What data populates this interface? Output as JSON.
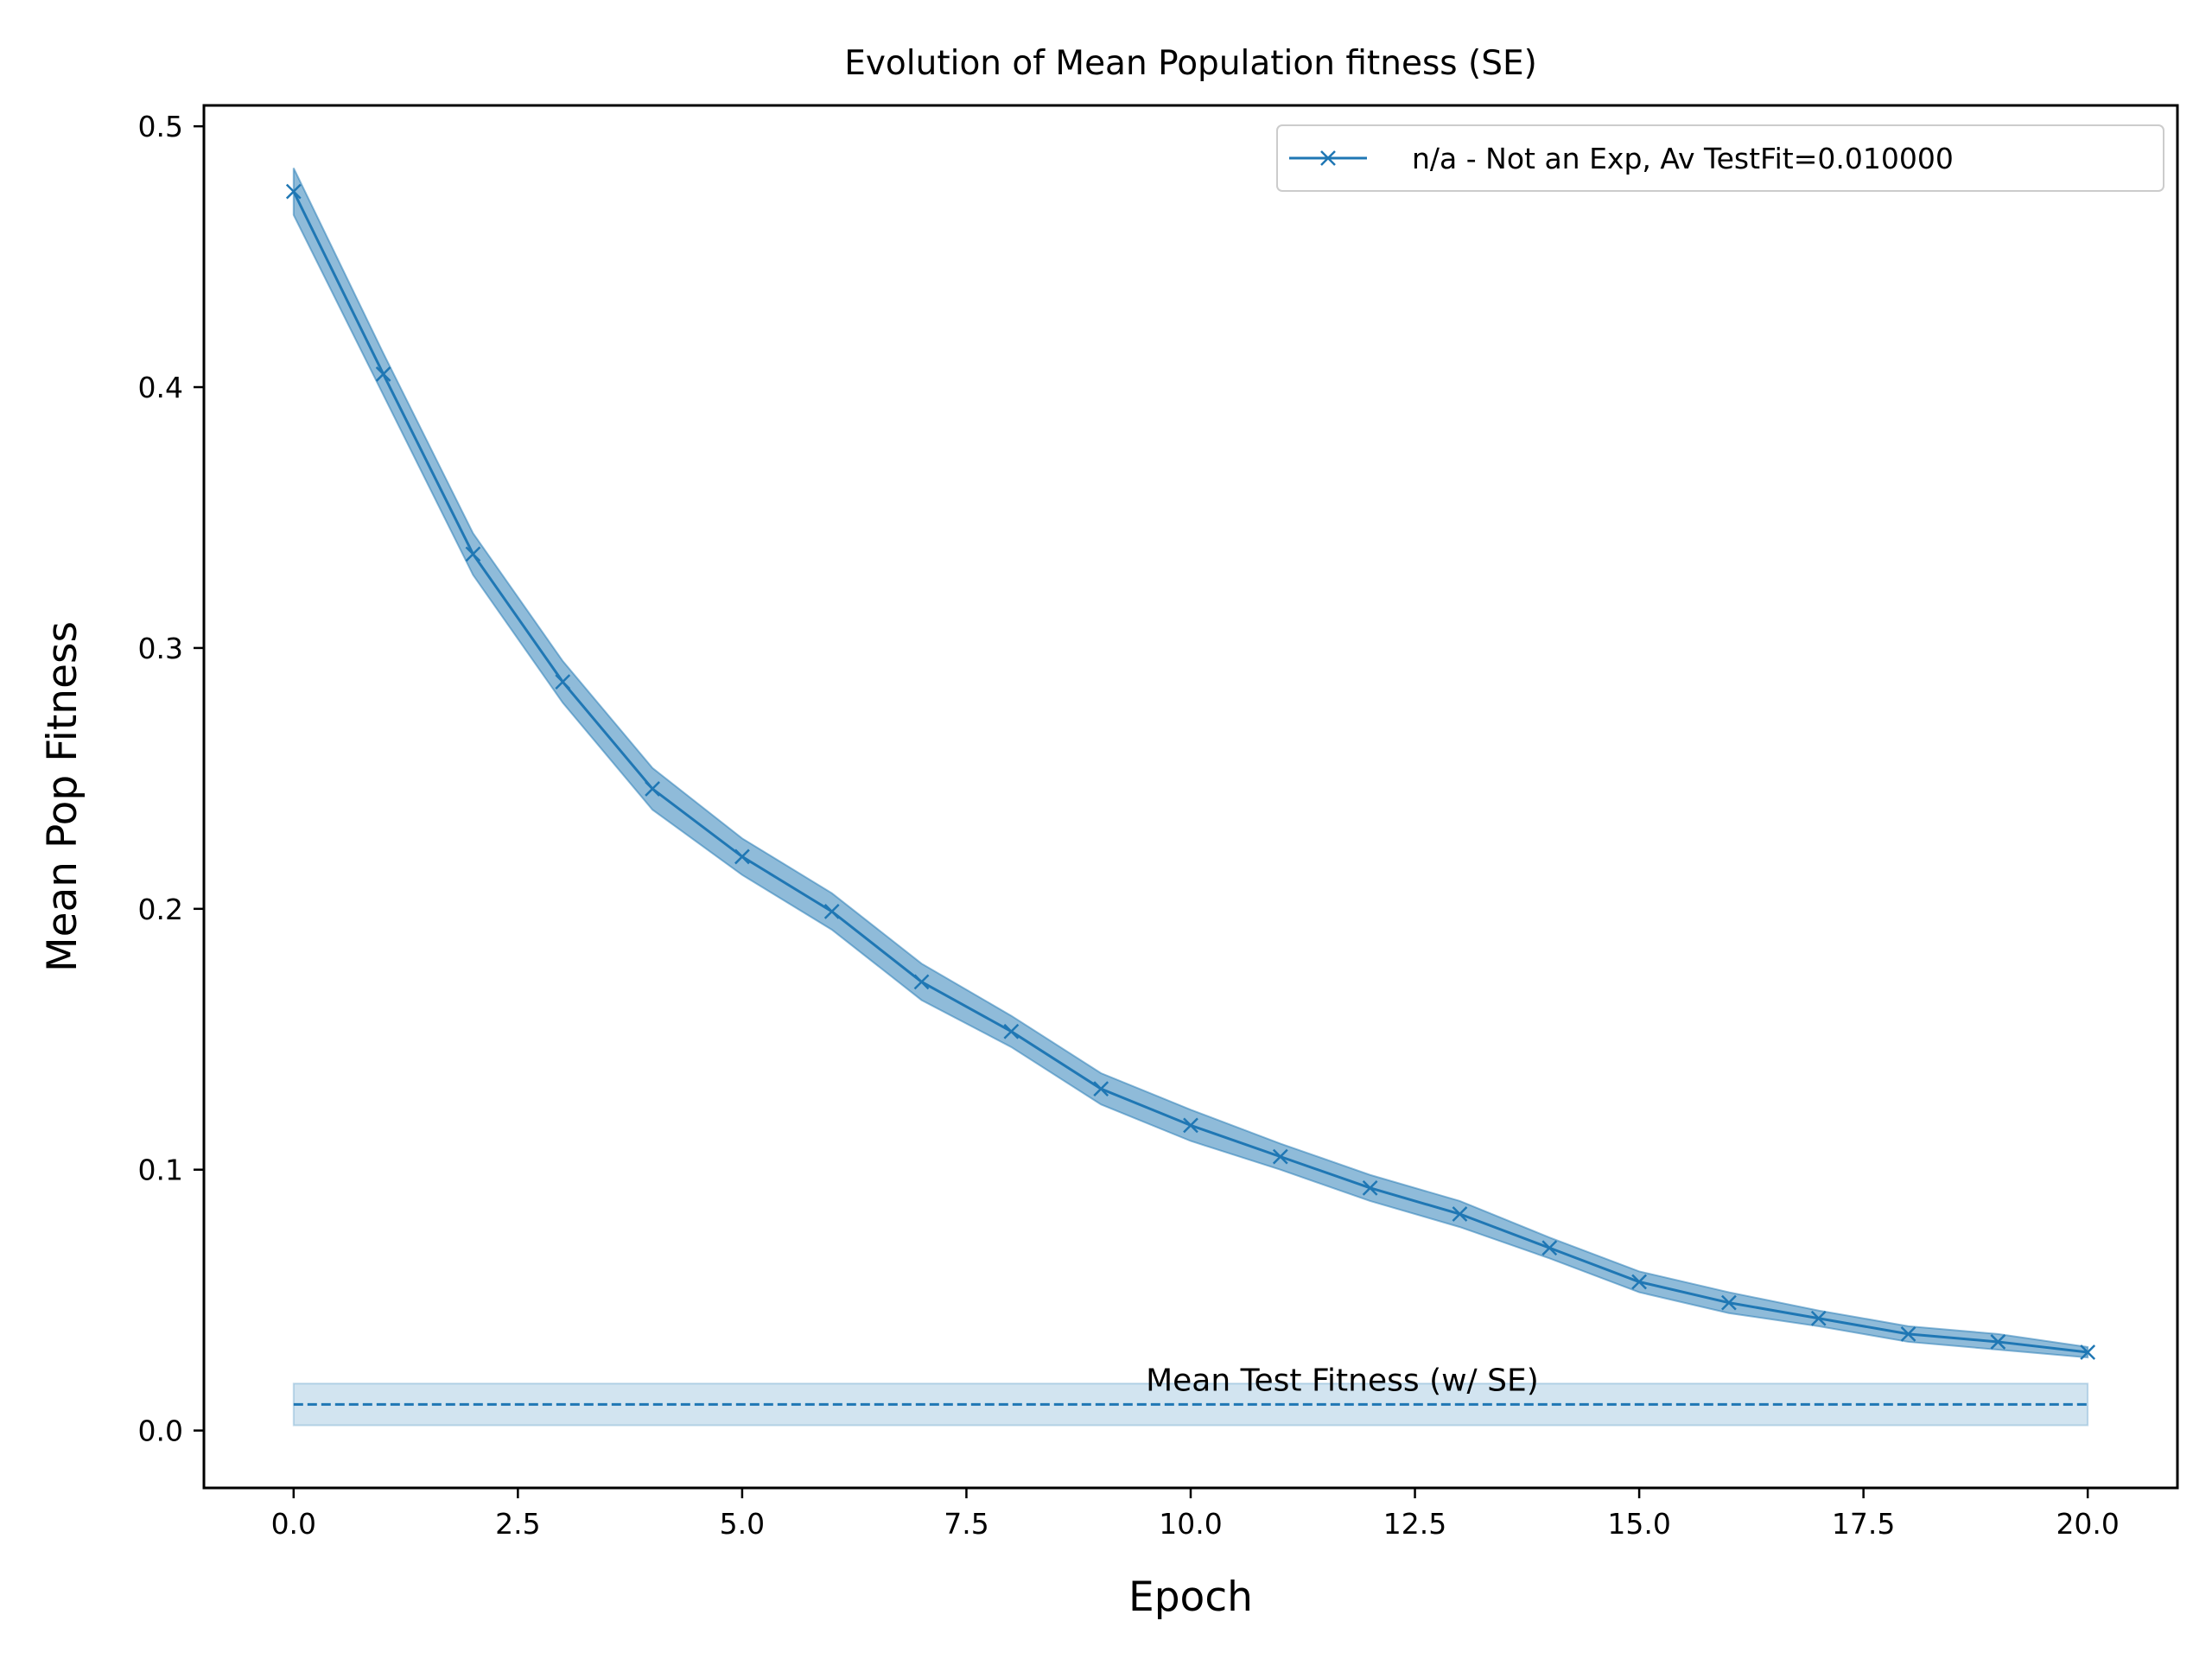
{
  "chart_data": {
    "type": "line",
    "title": "Evolution of Mean Population fitness (SE)",
    "xlabel": "Epoch",
    "ylabel": "Mean Pop Fitness",
    "xlim": [
      -1,
      21
    ],
    "ylim": [
      -0.022,
      0.508
    ],
    "x_ticks": [
      0.0,
      2.5,
      5.0,
      7.5,
      10.0,
      12.5,
      15.0,
      17.5,
      20.0
    ],
    "x_tick_labels": [
      "0.0",
      "2.5",
      "5.0",
      "7.5",
      "10.0",
      "12.5",
      "15.0",
      "17.5",
      "20.0"
    ],
    "y_ticks": [
      0.0,
      0.1,
      0.2,
      0.3,
      0.4,
      0.5
    ],
    "y_tick_labels": [
      "0.0",
      "0.1",
      "0.2",
      "0.3",
      "0.4",
      "0.5"
    ],
    "grid": false,
    "legend_position": "top-right",
    "series": [
      {
        "name": "n/a - Not an Exp, Av TestFit=0.010000",
        "color": "#1f77b4",
        "marker": "x",
        "x": [
          0,
          1,
          2,
          3,
          4,
          5,
          6,
          7,
          8,
          9,
          10,
          11,
          12,
          13,
          14,
          15,
          16,
          17,
          18,
          19,
          20
        ],
        "y": [
          0.475,
          0.405,
          0.336,
          0.287,
          0.246,
          0.22,
          0.199,
          0.172,
          0.153,
          0.131,
          0.117,
          0.105,
          0.093,
          0.083,
          0.07,
          0.057,
          0.049,
          0.043,
          0.037,
          0.034,
          0.03
        ],
        "se": [
          0.009,
          0.008,
          0.008,
          0.008,
          0.008,
          0.007,
          0.007,
          0.007,
          0.006,
          0.006,
          0.006,
          0.005,
          0.005,
          0.005,
          0.004,
          0.004,
          0.004,
          0.003,
          0.003,
          0.003,
          0.002
        ]
      }
    ],
    "reference_line": {
      "label": "Mean Test Fitness (w/ SE)",
      "y": 0.01,
      "se": 0.008,
      "x_range": [
        0,
        20
      ],
      "color": "#1f77b4",
      "style": "dashed"
    }
  }
}
